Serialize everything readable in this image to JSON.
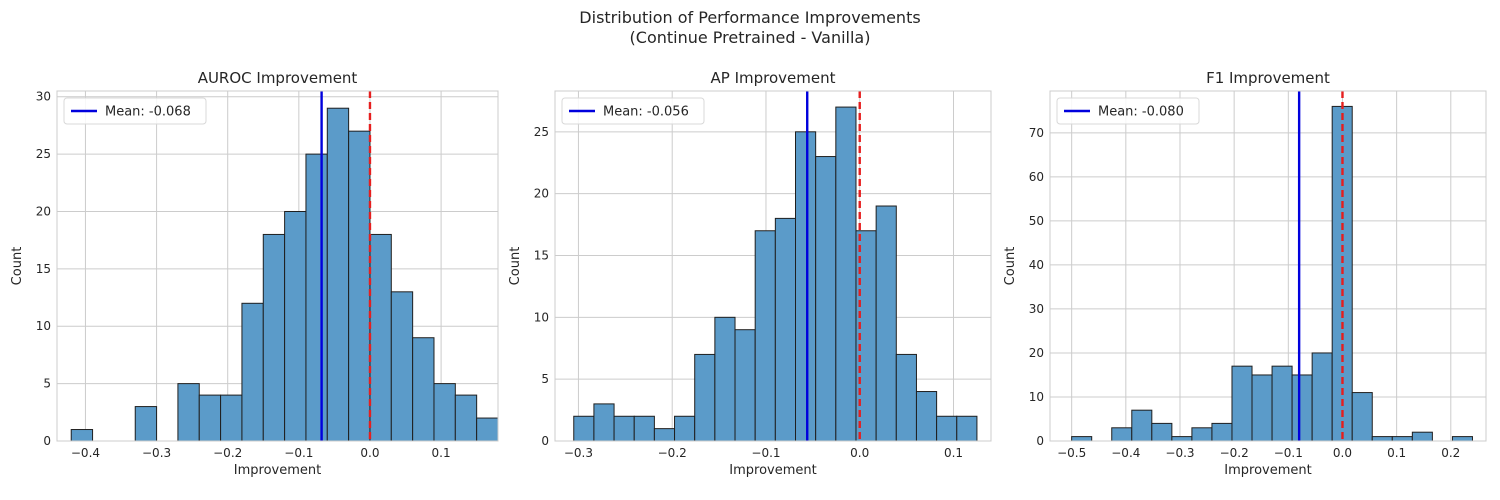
{
  "suptitle": {
    "line1": "Distribution of Performance Improvements",
    "line2": "(Continue Pretrained - Vanilla)"
  },
  "colors": {
    "bar": "#5b9bc9",
    "bar_edge": "#1f1f1f",
    "mean_line": "#0000dd",
    "zero_line": "#e61e1e",
    "grid": "#cccccc"
  },
  "chart_data": [
    {
      "type": "bar",
      "title": "AUROC Improvement",
      "xlabel": "Improvement",
      "ylabel": "Count",
      "xlim": [
        -0.44,
        0.18
      ],
      "ylim": [
        0,
        30.5
      ],
      "xticks": [
        -0.4,
        -0.3,
        -0.2,
        -0.1,
        0.0,
        0.1
      ],
      "xtick_labels": [
        "−0.4",
        "−0.3",
        "−0.2",
        "−0.1",
        "0.0",
        "0.1"
      ],
      "yticks": [
        0,
        5,
        10,
        15,
        20,
        25,
        30
      ],
      "bin_edges": [
        -0.42,
        -0.39,
        -0.36,
        -0.33,
        -0.3,
        -0.27,
        -0.24,
        -0.21,
        -0.18,
        -0.15,
        -0.12,
        -0.09,
        -0.06,
        -0.03,
        0.0,
        0.03,
        0.06,
        0.09,
        0.12,
        0.15,
        0.18
      ],
      "values": [
        1,
        0,
        0,
        3,
        0,
        5,
        4,
        4,
        12,
        18,
        20,
        25,
        29,
        27,
        18,
        13,
        9,
        5,
        4,
        2
      ],
      "mean": -0.068,
      "legend": "Mean: -0.068",
      "legend_position": "upper left",
      "grid": true
    },
    {
      "type": "bar",
      "title": "AP Improvement",
      "xlabel": "Improvement",
      "ylabel": "Count",
      "xlim": [
        -0.325,
        0.14
      ],
      "ylim": [
        0,
        28.3
      ],
      "xticks": [
        -0.3,
        -0.2,
        -0.1,
        0.0,
        0.1
      ],
      "xtick_labels": [
        "−0.3",
        "−0.2",
        "−0.1",
        "0.0",
        "0.1"
      ],
      "yticks": [
        0,
        5,
        10,
        15,
        20,
        25
      ],
      "bin_edges": [
        -0.305,
        -0.2835,
        -0.262,
        -0.2405,
        -0.219,
        -0.1975,
        -0.176,
        -0.1545,
        -0.133,
        -0.1115,
        -0.09,
        -0.0685,
        -0.047,
        -0.0255,
        -0.004,
        0.0175,
        0.039,
        0.0605,
        0.082,
        0.1035,
        0.125
      ],
      "values": [
        2,
        3,
        2,
        2,
        1,
        2,
        7,
        10,
        9,
        17,
        18,
        25,
        23,
        27,
        17,
        19,
        7,
        4,
        2,
        2
      ],
      "mean": -0.056,
      "legend": "Mean: -0.056",
      "legend_position": "upper left",
      "grid": true
    },
    {
      "type": "bar",
      "title": "F1 Improvement",
      "xlabel": "Improvement",
      "ylabel": "Count",
      "xlim": [
        -0.54,
        0.265
      ],
      "ylim": [
        0,
        79.5
      ],
      "xticks": [
        -0.5,
        -0.4,
        -0.3,
        -0.2,
        -0.1,
        0.0,
        0.1,
        0.2
      ],
      "xtick_labels": [
        "−0.5",
        "−0.4",
        "−0.3",
        "−0.2",
        "−0.1",
        "0.0",
        "0.1",
        "0.2"
      ],
      "yticks": [
        0,
        10,
        20,
        30,
        40,
        50,
        60,
        70
      ],
      "bin_edges": [
        -0.5,
        -0.463,
        -0.426,
        -0.389,
        -0.352,
        -0.315,
        -0.278,
        -0.241,
        -0.204,
        -0.167,
        -0.13,
        -0.093,
        -0.056,
        -0.019,
        0.018,
        0.055,
        0.092,
        0.129,
        0.166,
        0.203,
        0.24
      ],
      "values": [
        1,
        0,
        3,
        7,
        4,
        1,
        3,
        4,
        17,
        15,
        17,
        15,
        20,
        76,
        11,
        1,
        1,
        2,
        0,
        1
      ],
      "mean": -0.08,
      "legend": "Mean: -0.080",
      "legend_position": "upper left",
      "grid": true
    }
  ]
}
